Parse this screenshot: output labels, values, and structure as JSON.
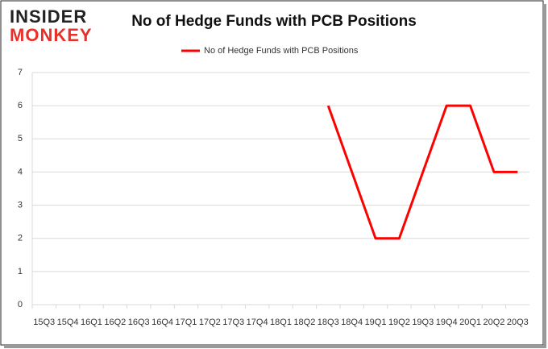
{
  "logo": {
    "top": "INSIDER",
    "bottom": "MONKEY"
  },
  "chart_data": {
    "type": "line",
    "title": "No of Hedge Funds with PCB Positions",
    "categories": [
      "15Q3",
      "15Q4",
      "16Q1",
      "16Q2",
      "16Q3",
      "16Q4",
      "17Q1",
      "17Q2",
      "17Q3",
      "17Q4",
      "18Q1",
      "18Q2",
      "18Q3",
      "18Q4",
      "19Q1",
      "19Q2",
      "19Q3",
      "19Q4",
      "20Q1",
      "20Q2",
      "20Q3"
    ],
    "series": [
      {
        "name": "No of Hedge Funds with PCB Positions",
        "color": "#ff0000",
        "values": [
          null,
          null,
          null,
          null,
          null,
          null,
          null,
          null,
          null,
          null,
          null,
          null,
          6,
          4,
          2,
          2,
          4,
          6,
          6,
          4,
          4
        ]
      }
    ],
    "ylim": [
      0,
      7
    ],
    "yticks": [
      0,
      1,
      2,
      3,
      4,
      5,
      6,
      7
    ],
    "grid": true,
    "legend": "top"
  }
}
